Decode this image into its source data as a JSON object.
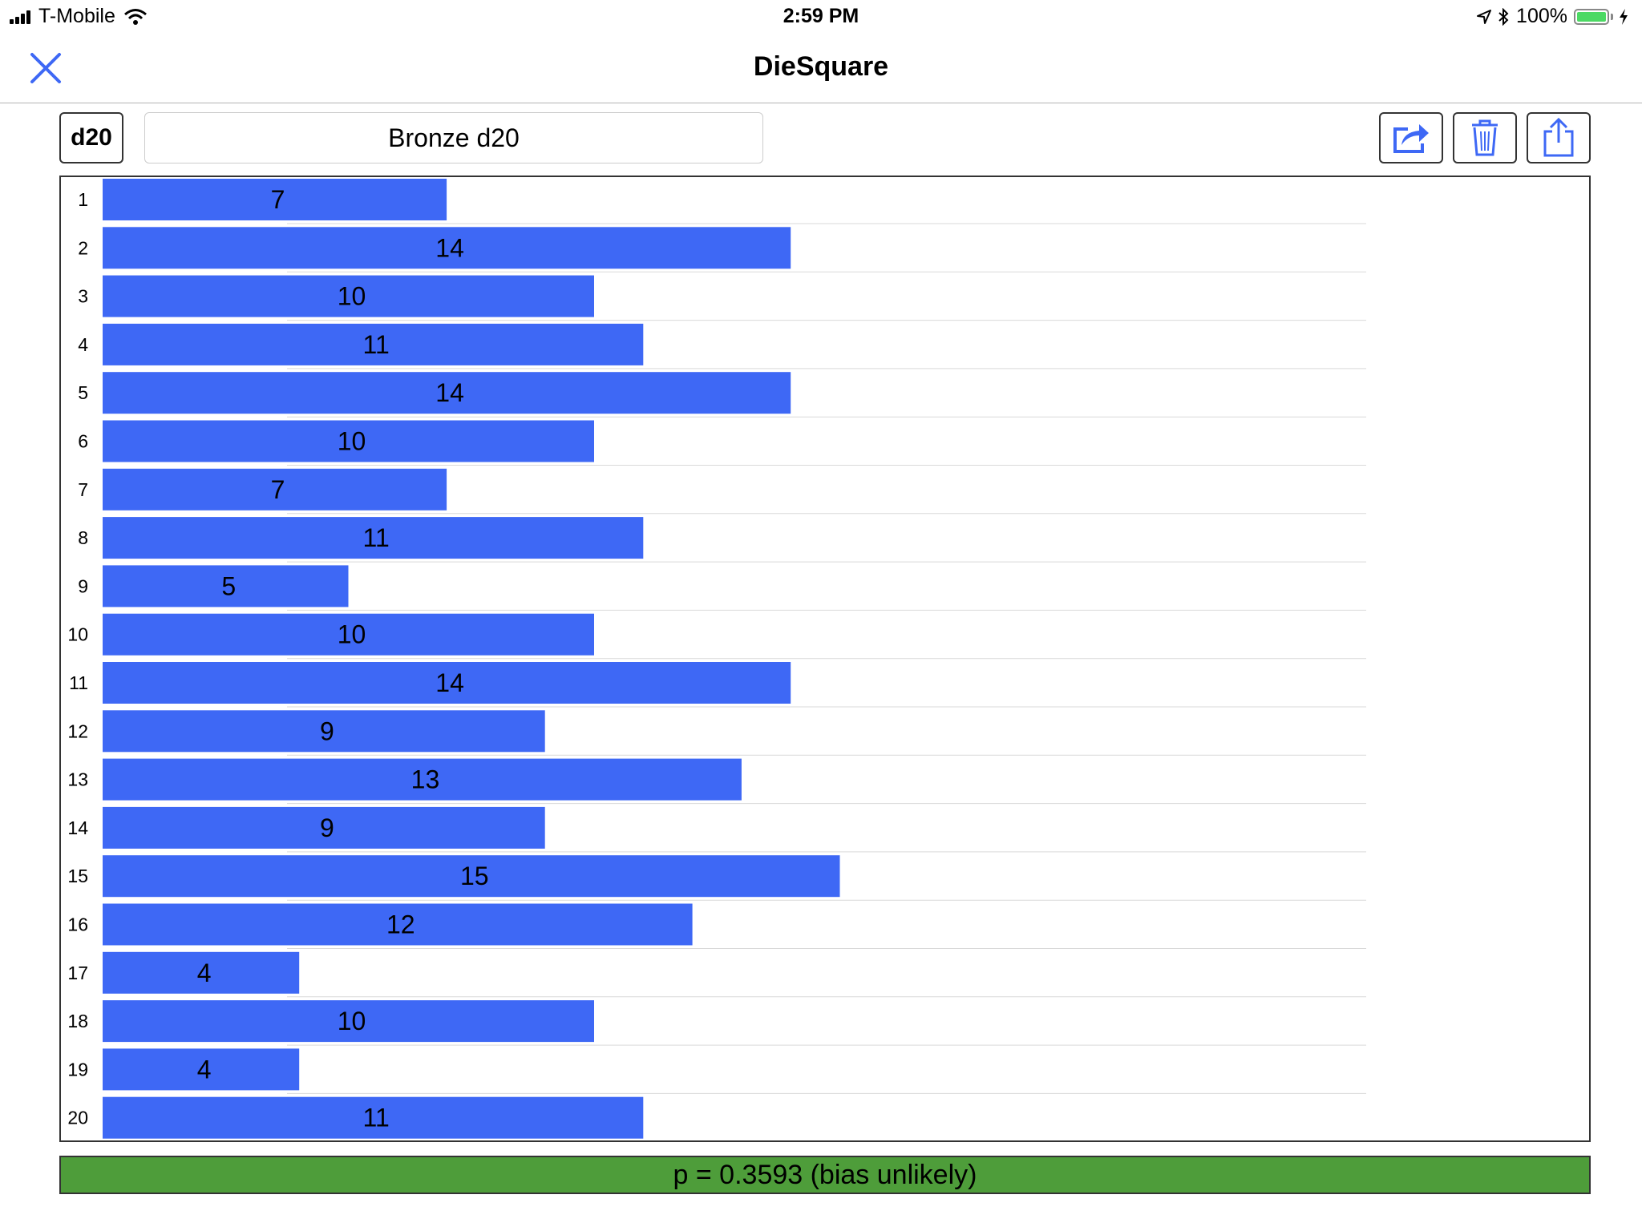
{
  "status_bar": {
    "carrier": "T-Mobile",
    "time": "2:59 PM",
    "battery_percent": "100%",
    "battery_level": 1.0,
    "wifi_icon": "wifi-icon",
    "location_icon": "location-arrow-icon",
    "bluetooth_icon": "bluetooth-icon",
    "charging_icon": "charging-bolt-icon"
  },
  "nav": {
    "title": "DieSquare",
    "close_icon": "close-icon"
  },
  "toolbar": {
    "die_type": "d20",
    "die_name": "Bronze d20",
    "buttons": [
      "share-arrow-icon",
      "trash-icon",
      "upload-icon"
    ]
  },
  "colors": {
    "accent": "#3e68f5",
    "bar": "#3e68f5",
    "p_band": "#4e9d3a"
  },
  "chart_data": {
    "type": "bar",
    "orientation": "horizontal",
    "categories": [
      "1",
      "2",
      "3",
      "4",
      "5",
      "6",
      "7",
      "8",
      "9",
      "10",
      "11",
      "12",
      "13",
      "14",
      "15",
      "16",
      "17",
      "18",
      "19",
      "20"
    ],
    "values": [
      7,
      14,
      10,
      11,
      14,
      10,
      7,
      11,
      5,
      10,
      14,
      9,
      13,
      9,
      15,
      12,
      4,
      10,
      4,
      11
    ],
    "xlim": [
      0,
      17
    ],
    "grid": true
  },
  "result": {
    "text": "p = 0.3593 (bias unlikely)"
  }
}
